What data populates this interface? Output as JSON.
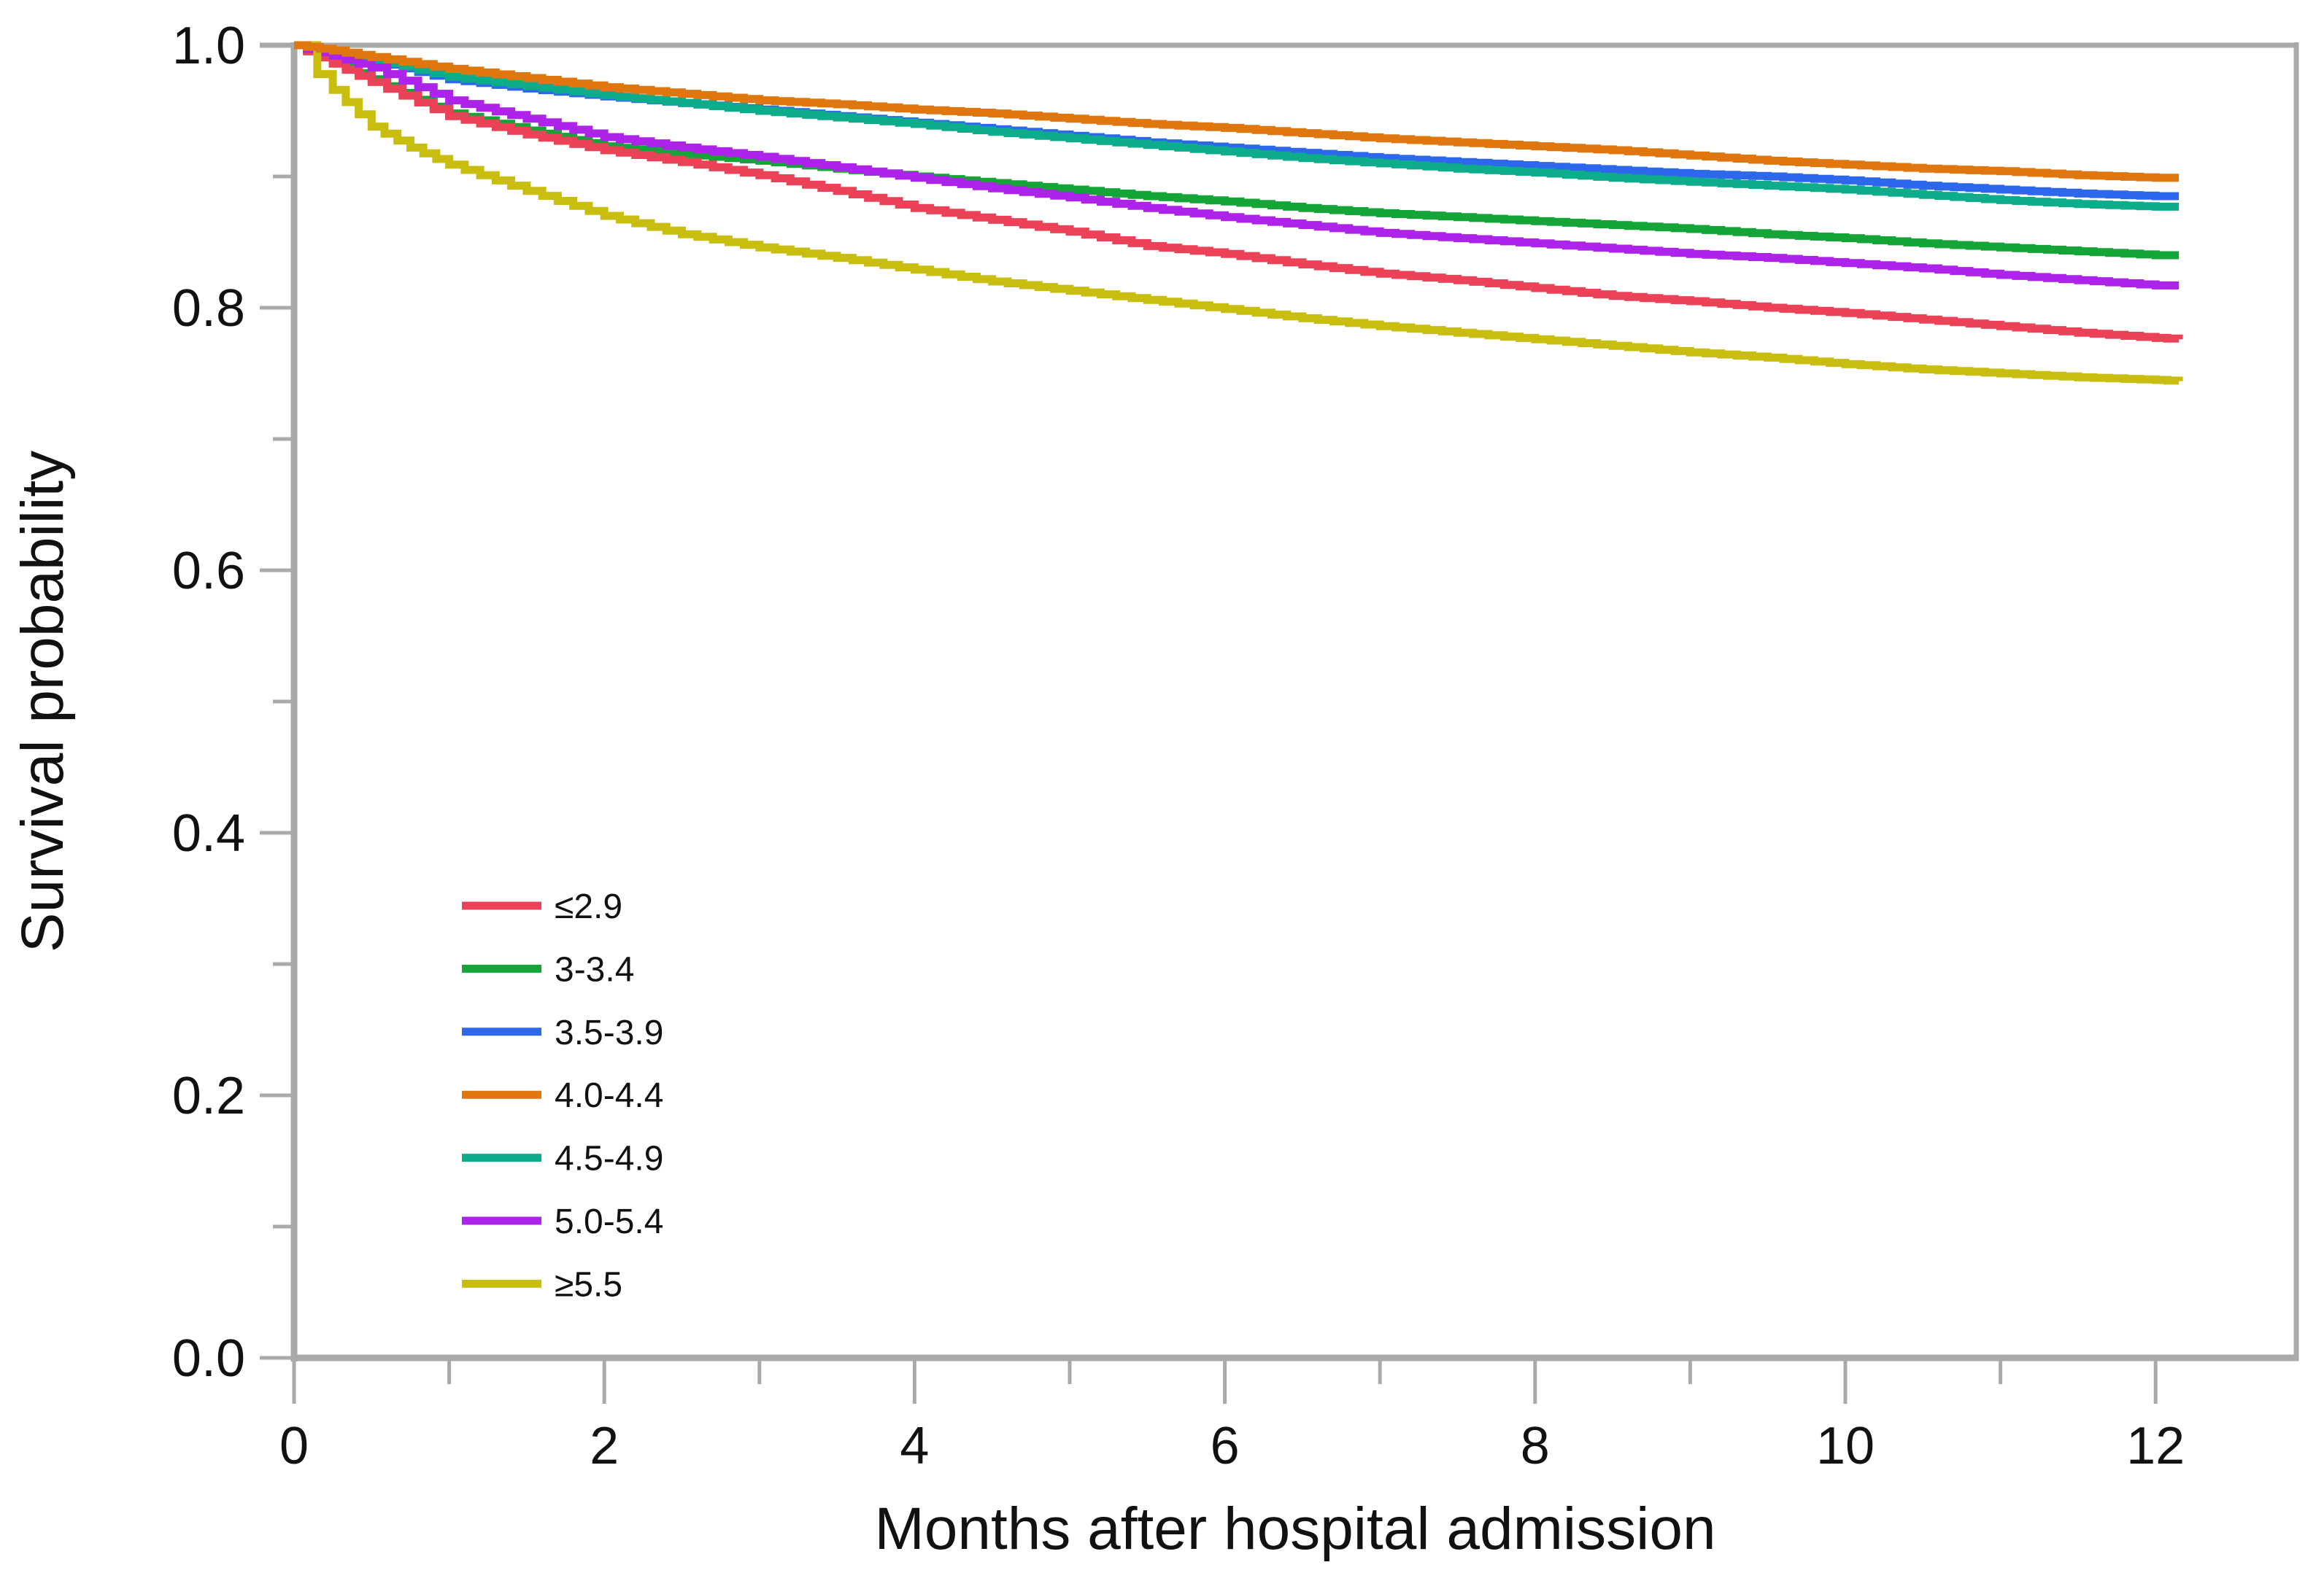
{
  "chart_data": {
    "type": "line",
    "subtype": "kaplan-meier-step-survival",
    "title": "",
    "xlabel": "Months after hospital admission",
    "ylabel": "Survival probability",
    "xlim": [
      0,
      12.9
    ],
    "ylim": [
      0.0,
      1.0
    ],
    "grid": "off",
    "legend_position": "inside-lower-left",
    "x_major_ticks": [
      0,
      2,
      4,
      6,
      8,
      10,
      12
    ],
    "x_minor_ticks": [
      1,
      3,
      5,
      7,
      9,
      11
    ],
    "x_tick_labels": [
      "0",
      "2",
      "4",
      "6",
      "8",
      "10",
      "12"
    ],
    "y_major_ticks": [
      1.0,
      0.8,
      0.6,
      0.4,
      0.2,
      0.0
    ],
    "y_minor_ticks": [
      0.9,
      0.7,
      0.5,
      0.3,
      0.1
    ],
    "y_tick_labels": [
      "1.0",
      "0.8",
      "0.6",
      "0.4",
      "0.2",
      "0.0"
    ],
    "series": [
      {
        "name": "≤2.9",
        "color": "#EB4257",
        "points": [
          [
            0,
            1.0
          ],
          [
            0.25,
            0.986
          ],
          [
            0.5,
            0.972
          ],
          [
            1,
            0.946
          ],
          [
            1.5,
            0.932
          ],
          [
            2,
            0.92
          ],
          [
            2.5,
            0.911
          ],
          [
            3,
            0.901
          ],
          [
            3.5,
            0.889
          ],
          [
            4,
            0.876
          ],
          [
            4.5,
            0.867
          ],
          [
            5,
            0.858
          ],
          [
            5.5,
            0.847
          ],
          [
            6,
            0.841
          ],
          [
            6.5,
            0.833
          ],
          [
            7,
            0.826
          ],
          [
            7.5,
            0.821
          ],
          [
            8,
            0.815
          ],
          [
            8.5,
            0.809
          ],
          [
            9,
            0.805
          ],
          [
            9.5,
            0.8
          ],
          [
            10,
            0.796
          ],
          [
            10.5,
            0.791
          ],
          [
            11,
            0.786
          ],
          [
            11.5,
            0.781
          ],
          [
            12,
            0.777
          ],
          [
            12.15,
            0.776
          ]
        ]
      },
      {
        "name": "3-3.4",
        "color": "#14A437",
        "points": [
          [
            0,
            1.0
          ],
          [
            0.25,
            0.988
          ],
          [
            0.5,
            0.974
          ],
          [
            1,
            0.948
          ],
          [
            1.5,
            0.935
          ],
          [
            2,
            0.923
          ],
          [
            2.5,
            0.917
          ],
          [
            3,
            0.912
          ],
          [
            3.5,
            0.906
          ],
          [
            4,
            0.9
          ],
          [
            4.5,
            0.895
          ],
          [
            5,
            0.89
          ],
          [
            5.5,
            0.885
          ],
          [
            6,
            0.881
          ],
          [
            6.5,
            0.876
          ],
          [
            7,
            0.872
          ],
          [
            7.5,
            0.869
          ],
          [
            8,
            0.866
          ],
          [
            8.5,
            0.863
          ],
          [
            9,
            0.86
          ],
          [
            9.5,
            0.856
          ],
          [
            10,
            0.853
          ],
          [
            10.5,
            0.849
          ],
          [
            11,
            0.846
          ],
          [
            11.5,
            0.843
          ],
          [
            12,
            0.84
          ],
          [
            12.15,
            0.84
          ]
        ]
      },
      {
        "name": "3.5-3.9",
        "color": "#2D68EC",
        "points": [
          [
            0,
            1.0
          ],
          [
            0.25,
            0.994
          ],
          [
            0.5,
            0.988
          ],
          [
            1,
            0.974
          ],
          [
            1.5,
            0.967
          ],
          [
            2,
            0.961
          ],
          [
            2.5,
            0.956
          ],
          [
            3,
            0.951
          ],
          [
            3.5,
            0.946
          ],
          [
            4,
            0.941
          ],
          [
            4.5,
            0.936
          ],
          [
            5,
            0.931
          ],
          [
            5.5,
            0.926
          ],
          [
            6,
            0.922
          ],
          [
            6.5,
            0.918
          ],
          [
            7,
            0.914
          ],
          [
            7.5,
            0.911
          ],
          [
            8,
            0.908
          ],
          [
            8.5,
            0.905
          ],
          [
            9,
            0.902
          ],
          [
            9.5,
            0.9
          ],
          [
            10,
            0.897
          ],
          [
            10.5,
            0.893
          ],
          [
            11,
            0.89
          ],
          [
            11.5,
            0.887
          ],
          [
            12,
            0.885
          ],
          [
            12.15,
            0.885
          ]
        ]
      },
      {
        "name": "4.0-4.4",
        "color": "#DF770E",
        "points": [
          [
            0,
            1.0
          ],
          [
            0.25,
            0.996
          ],
          [
            0.5,
            0.991
          ],
          [
            1,
            0.982
          ],
          [
            1.5,
            0.975
          ],
          [
            2,
            0.968
          ],
          [
            2.5,
            0.963
          ],
          [
            3,
            0.958
          ],
          [
            3.5,
            0.955
          ],
          [
            4,
            0.951
          ],
          [
            4.5,
            0.948
          ],
          [
            5,
            0.944
          ],
          [
            5.5,
            0.94
          ],
          [
            6,
            0.937
          ],
          [
            6.5,
            0.933
          ],
          [
            7,
            0.929
          ],
          [
            7.5,
            0.926
          ],
          [
            8,
            0.923
          ],
          [
            8.5,
            0.92
          ],
          [
            9,
            0.916
          ],
          [
            9.5,
            0.912
          ],
          [
            10,
            0.909
          ],
          [
            10.5,
            0.906
          ],
          [
            11,
            0.904
          ],
          [
            11.5,
            0.901
          ],
          [
            12,
            0.899
          ],
          [
            12.15,
            0.899
          ]
        ]
      },
      {
        "name": "4.5-4.9",
        "color": "#0DAD8C",
        "points": [
          [
            0,
            1.0
          ],
          [
            0.25,
            0.995
          ],
          [
            0.5,
            0.989
          ],
          [
            1,
            0.976
          ],
          [
            1.5,
            0.969
          ],
          [
            2,
            0.962
          ],
          [
            2.5,
            0.956
          ],
          [
            3,
            0.95
          ],
          [
            3.5,
            0.945
          ],
          [
            4,
            0.94
          ],
          [
            4.5,
            0.934
          ],
          [
            5,
            0.929
          ],
          [
            5.5,
            0.924
          ],
          [
            6,
            0.919
          ],
          [
            6.5,
            0.914
          ],
          [
            7,
            0.91
          ],
          [
            7.5,
            0.906
          ],
          [
            8,
            0.903
          ],
          [
            8.5,
            0.899
          ],
          [
            9,
            0.896
          ],
          [
            9.5,
            0.893
          ],
          [
            10,
            0.89
          ],
          [
            10.5,
            0.886
          ],
          [
            11,
            0.882
          ],
          [
            11.5,
            0.879
          ],
          [
            12,
            0.877
          ],
          [
            12.15,
            0.877
          ]
        ]
      },
      {
        "name": "5.0-5.4",
        "color": "#AE23E9",
        "points": [
          [
            0,
            1.0
          ],
          [
            0.25,
            0.992
          ],
          [
            0.5,
            0.983
          ],
          [
            1,
            0.958
          ],
          [
            1.5,
            0.944
          ],
          [
            2,
            0.93
          ],
          [
            2.5,
            0.922
          ],
          [
            3,
            0.915
          ],
          [
            3.5,
            0.907
          ],
          [
            4,
            0.899
          ],
          [
            4.5,
            0.891
          ],
          [
            5,
            0.884
          ],
          [
            5.5,
            0.876
          ],
          [
            6,
            0.869
          ],
          [
            6.5,
            0.863
          ],
          [
            7,
            0.857
          ],
          [
            7.5,
            0.853
          ],
          [
            8,
            0.849
          ],
          [
            8.5,
            0.845
          ],
          [
            9,
            0.841
          ],
          [
            9.5,
            0.838
          ],
          [
            10,
            0.834
          ],
          [
            10.5,
            0.83
          ],
          [
            11,
            0.825
          ],
          [
            11.5,
            0.821
          ],
          [
            12,
            0.817
          ],
          [
            12.15,
            0.817
          ]
        ]
      },
      {
        "name": "≥5.5",
        "color": "#C9BD10",
        "points": [
          [
            0,
            1.0
          ],
          [
            0.15,
            0.978
          ],
          [
            0.25,
            0.966
          ],
          [
            0.5,
            0.938
          ],
          [
            0.75,
            0.922
          ],
          [
            1,
            0.909
          ],
          [
            1.5,
            0.889
          ],
          [
            2,
            0.87
          ],
          [
            2.5,
            0.856
          ],
          [
            3,
            0.846
          ],
          [
            3.5,
            0.838
          ],
          [
            4,
            0.829
          ],
          [
            4.5,
            0.82
          ],
          [
            5,
            0.813
          ],
          [
            5.5,
            0.806
          ],
          [
            6,
            0.799
          ],
          [
            6.5,
            0.792
          ],
          [
            7,
            0.786
          ],
          [
            7.5,
            0.781
          ],
          [
            8,
            0.776
          ],
          [
            8.5,
            0.771
          ],
          [
            9,
            0.766
          ],
          [
            9.5,
            0.762
          ],
          [
            10,
            0.757
          ],
          [
            10.5,
            0.753
          ],
          [
            11,
            0.75
          ],
          [
            11.5,
            0.747
          ],
          [
            12,
            0.745
          ],
          [
            12.15,
            0.744
          ]
        ]
      }
    ]
  },
  "styles": {
    "axis_color": "#A9A9A9",
    "text_color": "#111111",
    "background": "#FFFFFF"
  }
}
